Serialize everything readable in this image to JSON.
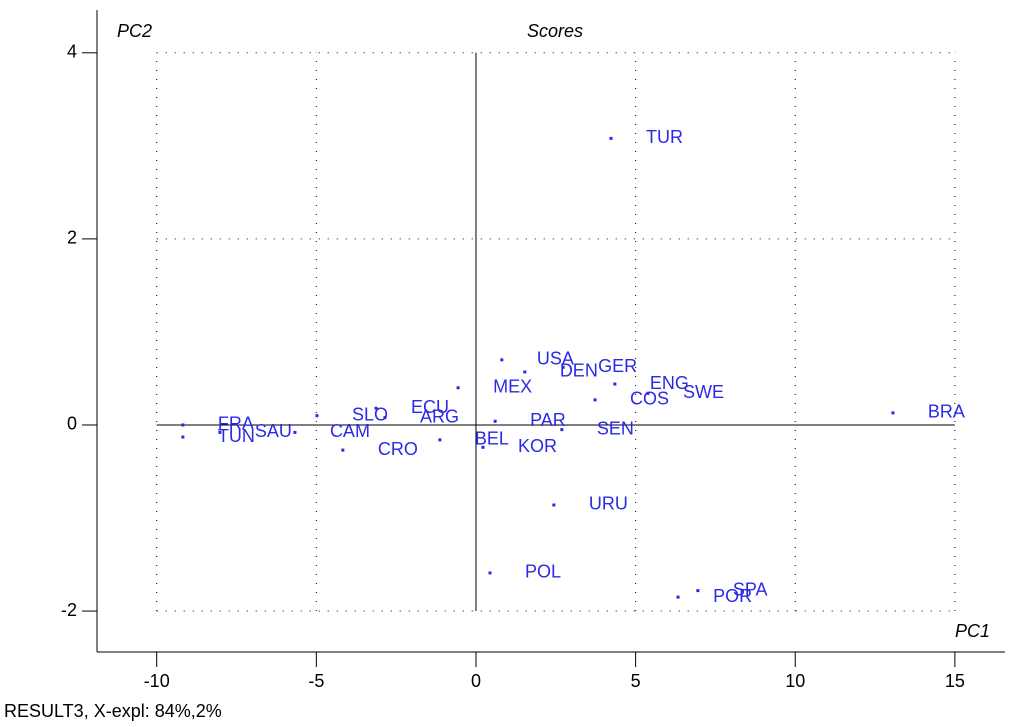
{
  "chart_data": {
    "type": "scatter",
    "title": "Scores",
    "xlabel": "PC1",
    "ylabel": "PC2",
    "footer": "RESULT3, X-expl: 84%,2%",
    "labels": [
      "TUR",
      "BRA",
      "URU",
      "POL",
      "SPA",
      "POR",
      "USA",
      "DEN",
      "GER",
      "ENG",
      "SWE",
      "COS",
      "MEX",
      "ECU",
      "SLO",
      "ARG",
      "CRO",
      "BEL",
      "KOR",
      "PAR",
      "SEN",
      "FRA",
      "TUN",
      "SAU",
      "CAM"
    ],
    "x": [
      4.23,
      13.06,
      2.44,
      0.44,
      6.95,
      6.33,
      0.81,
      1.53,
      2.73,
      4.35,
      5.39,
      3.73,
      -0.56,
      -3.13,
      -4.98,
      -2.85,
      -4.17,
      -1.13,
      0.22,
      0.6,
      2.69,
      -9.18,
      -9.18,
      -8.02,
      -5.67
    ],
    "values": [
      3.08,
      0.13,
      -0.86,
      -1.59,
      -1.78,
      -1.85,
      0.7,
      0.57,
      0.62,
      0.44,
      0.34,
      0.27,
      0.4,
      0.18,
      0.1,
      0.08,
      -0.27,
      -0.16,
      -0.24,
      0.04,
      -0.05,
      0.0,
      -0.13,
      -0.08,
      -0.08
    ],
    "color": "#2a2ae6",
    "xlim": [
      -11.87,
      16.57
    ],
    "ylim": [
      -2.44,
      4.46
    ],
    "xticks": [
      -10,
      -5,
      0,
      5,
      10,
      15
    ],
    "yticks": [
      -2,
      0,
      2,
      4
    ],
    "grid": true
  }
}
